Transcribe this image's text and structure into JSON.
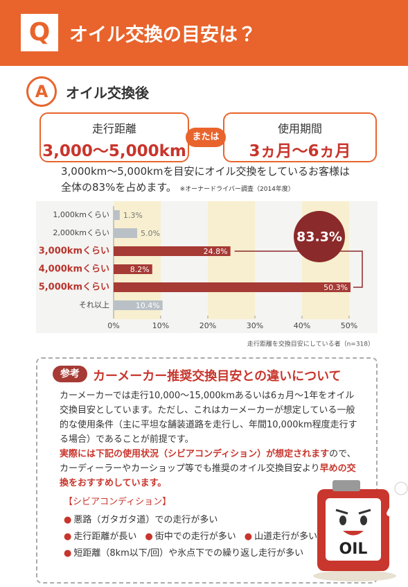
{
  "header": {
    "mark": "Q",
    "title": "オイル交換の目安は？"
  },
  "answer": {
    "mark": "A",
    "title": "オイル交換後"
  },
  "criteria": {
    "distance": {
      "label": "走行距離",
      "value": "3,000〜5,000km"
    },
    "connector": "または",
    "period": {
      "label": "使用期間",
      "value": "3ヵ月〜6ヵ月"
    }
  },
  "summary": {
    "lines": [
      "3,000km〜5,000kmを目安にオイル交換をしているお客様は",
      "全体の83%を占めます。"
    ],
    "note": "※オーナードライバー調査（2014年度）"
  },
  "chart_data": {
    "type": "hbar",
    "categories": [
      "1,000kmくらい",
      "2,000kmくらい",
      "3,000kmくらい",
      "4,000kmくらい",
      "5,000kmくらい",
      "それ以上"
    ],
    "values": [
      1.3,
      5.0,
      24.8,
      8.2,
      50.3,
      10.4
    ],
    "value_labels": [
      "1.3%",
      "5.0%",
      "24.8%",
      "8.2%",
      "50.3%",
      "10.4%"
    ],
    "colors": [
      "#b9c0c6",
      "#b9c0c6",
      "#a63a35",
      "#a63a35",
      "#a63a35",
      "#b9c0c6"
    ],
    "highlight": [
      false,
      false,
      true,
      true,
      true,
      false
    ],
    "xlim": [
      0,
      50
    ],
    "xticks": [
      {
        "value": 0,
        "label": "0%"
      },
      {
        "value": 10,
        "label": "10%"
      },
      {
        "value": 20,
        "label": "20%"
      },
      {
        "value": 30,
        "label": "30%"
      },
      {
        "value": 40,
        "label": "40%"
      },
      {
        "value": 50,
        "label": "50%"
      }
    ],
    "annotation": "83.3%",
    "source": "走行距離を交換目安にしている者（n=318）"
  },
  "reference": {
    "tag": "参考",
    "title": "カーメーカー推奨交換目安との違いについて",
    "paragraph1": "カーメーカーでは走行10,000〜15,000kmあるいは6ヵ月〜1年をオイル交換目安としています。ただし、これはカーメーカーが想定している一般的な使用条件（主に平坦な舗装道路を走行し、年間10,000km程度走行する場合）であることが前提です。",
    "paragraph2": [
      "実際には下記の使用状況（シビアコンディション）が想定されます",
      "ので、カーディーラーやカーショップ等でも推奨のオイル交換目安より",
      "早めの交換をおすすめしています。"
    ]
  },
  "conditions": {
    "heading": "【シビアコンディション】",
    "items": [
      [
        "悪路（ガタガタ道）での走行が多い"
      ],
      [
        "走行距離が長い",
        "街中での走行が多い",
        "山道走行が多い"
      ],
      [
        "短距離（8km以下/回）や氷点下での繰り返し走行が多い"
      ]
    ]
  },
  "mascot": {
    "label": "OIL"
  }
}
